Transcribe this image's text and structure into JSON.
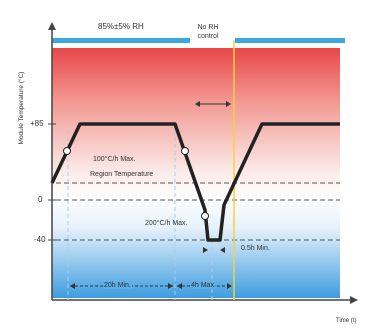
{
  "top_bar": {
    "humidity_label": "85%±5% RH",
    "no_rh_label": "No RH control"
  },
  "axes": {
    "y_label": "Module Temperature (°C)",
    "x_label": "Time (t)",
    "tick_85": "+85",
    "tick_0": "0",
    "tick_minus40": "-40"
  },
  "annotations": {
    "ramp_high": "100°C/h Max.",
    "ramp_low": "200°C/h Max.",
    "region_label": "Region Temperature",
    "dwell": "0.5h Min.",
    "hold_20h": "20h Min.",
    "hold_4h": "4h Max."
  },
  "colors": {
    "top_bar": "#3aa7dd",
    "hot": "#e8474a",
    "cold": "#3d9de0",
    "profile": "#222222",
    "marker_line": "#f5d23a"
  }
}
